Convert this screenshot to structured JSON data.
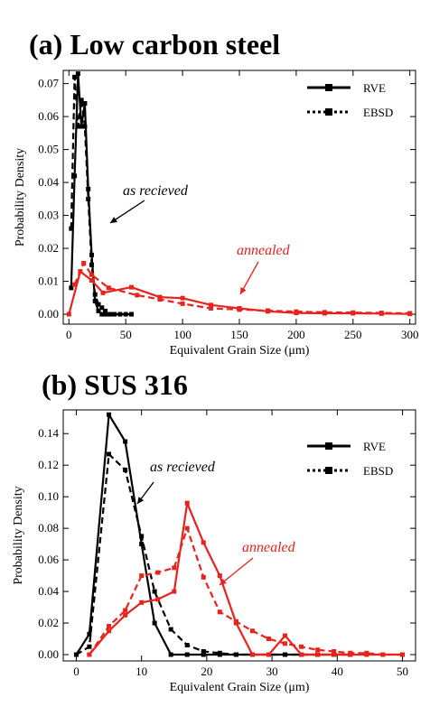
{
  "chart_data": [
    {
      "type": "line",
      "title": "(a) Low carbon steel",
      "xlabel": "Equivalent Grain Size (μm)",
      "ylabel": "Probability Density",
      "xlim": [
        -5,
        305
      ],
      "ylim": [
        -0.003,
        0.074
      ],
      "xticks": [
        0,
        50,
        100,
        150,
        200,
        250,
        300
      ],
      "yticks": [
        0,
        0.01,
        0.02,
        0.03,
        0.04,
        0.05,
        0.06,
        0.07
      ],
      "ytick_labels": [
        "0.00",
        "0.01",
        "0.02",
        "0.03",
        "0.04",
        "0.05",
        "0.06",
        "0.07"
      ],
      "legend": {
        "position": "top-right",
        "entries": [
          {
            "label": "RVE",
            "style": "solid"
          },
          {
            "label": "EBSD",
            "style": "dotted"
          }
        ]
      },
      "series": [
        {
          "group": "as recieved",
          "source": "RVE",
          "color": "#000000",
          "dash": "solid",
          "x": [
            2,
            5,
            8,
            11,
            14,
            17,
            20,
            23,
            26,
            29,
            32,
            36,
            40,
            45,
            50,
            55
          ],
          "y": [
            0.008,
            0.042,
            0.073,
            0.057,
            0.064,
            0.038,
            0.018,
            0.004,
            0.001,
            0,
            0,
            0,
            0,
            0,
            0,
            0
          ]
        },
        {
          "group": "as recieved",
          "source": "EBSD",
          "color": "#000000",
          "dash": "dashed",
          "x": [
            2,
            5,
            8,
            11,
            14,
            17,
            20,
            23,
            26,
            29,
            32,
            36
          ],
          "y": [
            0.026,
            0.072,
            0.057,
            0.065,
            0.057,
            0.035,
            0.015,
            0.006,
            0.003,
            0.002,
            0.001,
            0
          ]
        },
        {
          "group": "annealed",
          "source": "RVE",
          "color": "#e8231e",
          "dash": "solid",
          "x": [
            0,
            10,
            20,
            30,
            55,
            80,
            100,
            125,
            150,
            175,
            200,
            225,
            250,
            275,
            300
          ],
          "y": [
            0.0,
            0.013,
            0.0103,
            0.0065,
            0.0082,
            0.0052,
            0.0049,
            0.0028,
            0.0018,
            0.0009,
            0.0004,
            0.0003,
            0.0003,
            0.0002,
            0.0001
          ]
        },
        {
          "group": "annealed",
          "source": "EBSD",
          "color": "#e8231e",
          "dash": "dashed",
          "x": [
            5,
            13,
            20,
            35,
            60,
            80,
            100,
            125,
            150,
            175,
            200,
            225,
            250,
            275,
            300
          ],
          "y": [
            0.009,
            0.0155,
            0.012,
            0.008,
            0.0058,
            0.0045,
            0.0032,
            0.0018,
            0.0014,
            0.0011,
            0.0008,
            0.0006,
            0.0005,
            0.0004,
            0.0003
          ]
        }
      ],
      "annotations": [
        {
          "text": "as recieved",
          "color": "#000000",
          "x": 45,
          "y": 0.0455
        },
        {
          "text": "annealed",
          "color": "#e8231e",
          "x": 168,
          "y": 0.0183
        }
      ]
    },
    {
      "type": "line",
      "title": "(b) SUS 316",
      "xlabel": "Equivalent Grain Size (μm)",
      "ylabel": "Probability Density",
      "xlim": [
        -2,
        52
      ],
      "ylim": [
        -0.004,
        0.155
      ],
      "xticks": [
        0,
        10,
        20,
        30,
        40,
        50
      ],
      "yticks": [
        0,
        0.02,
        0.04,
        0.06,
        0.08,
        0.1,
        0.12,
        0.14
      ],
      "ytick_labels": [
        "0.00",
        "0.02",
        "0.04",
        "0.06",
        "0.08",
        "0.10",
        "0.12",
        "0.14"
      ],
      "legend": {
        "position": "top-right",
        "entries": [
          {
            "label": "RVE",
            "style": "solid"
          },
          {
            "label": "EBSD",
            "style": "dotted"
          }
        ]
      },
      "series": [
        {
          "group": "as recieved",
          "source": "RVE",
          "color": "#000000",
          "dash": "solid",
          "x": [
            0,
            2,
            5,
            7.5,
            10,
            12,
            14.5,
            17,
            19.5,
            22,
            24.5,
            27,
            29.5,
            32,
            34.5,
            37,
            39.5,
            42
          ],
          "y": [
            0,
            0.013,
            0.152,
            0.135,
            0.07,
            0.02,
            0,
            0,
            0,
            0,
            0,
            0,
            0,
            0,
            0,
            0,
            0,
            0
          ]
        },
        {
          "group": "as recieved",
          "source": "EBSD",
          "color": "#000000",
          "dash": "dashed",
          "x": [
            0,
            2,
            5,
            7.5,
            10,
            12,
            14.5,
            17,
            19.5,
            22,
            24.5,
            27,
            29.5,
            32,
            34.5,
            37,
            39.5,
            42
          ],
          "y": [
            0,
            0.005,
            0.127,
            0.117,
            0.075,
            0.04,
            0.016,
            0.006,
            0.002,
            0.001,
            0,
            0,
            0,
            0,
            0,
            0,
            0,
            0
          ]
        },
        {
          "group": "annealed",
          "source": "RVE",
          "color": "#e8231e",
          "dash": "solid",
          "x": [
            2,
            5,
            7.5,
            10,
            12.5,
            15,
            17,
            19.5,
            22,
            24.5,
            27,
            29.5,
            32,
            34.5,
            37,
            39.5,
            42,
            44.5,
            47,
            50
          ],
          "y": [
            0,
            0.015,
            0.025,
            0.033,
            0.035,
            0.04,
            0.096,
            0.071,
            0.05,
            0.02,
            0,
            0,
            0.012,
            0,
            0,
            0,
            0,
            0,
            0,
            0
          ]
        },
        {
          "group": "annealed",
          "source": "EBSD",
          "color": "#e8231e",
          "dash": "dashed",
          "x": [
            2,
            5,
            7.5,
            10,
            12.5,
            15,
            17,
            19.5,
            22,
            24.5,
            27,
            29.5,
            32,
            34.5,
            37,
            39.5,
            42,
            44.5,
            47,
            50
          ],
          "y": [
            0,
            0.018,
            0.028,
            0.05,
            0.052,
            0.055,
            0.08,
            0.049,
            0.027,
            0.021,
            0.015,
            0.01,
            0.007,
            0.005,
            0.003,
            0.002,
            0.001,
            0.001,
            0,
            0
          ]
        }
      ],
      "annotations": [
        {
          "text": "as recieved",
          "color": "#000000",
          "x": 9.5,
          "y": 0.124
        },
        {
          "text": "annealed",
          "color": "#e8231e",
          "x": 28,
          "y": 0.07
        }
      ]
    }
  ]
}
